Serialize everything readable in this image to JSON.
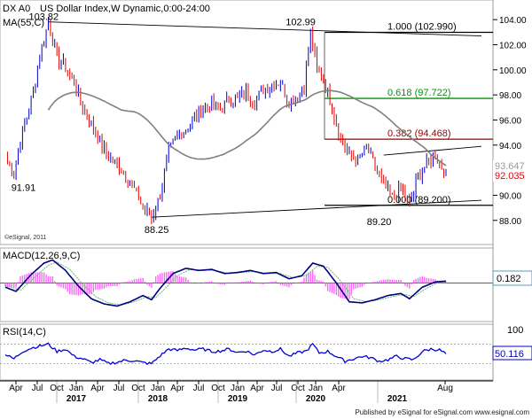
{
  "header": {
    "symbol": "DX A0",
    "title": "US Dollar Index,W",
    "mode": "Dynamic,0:00-24:00",
    "ma_label": "MA(55,C)",
    "watermark": "©eSignal, 2011",
    "footer": "Published by eSignal for eSignal.com  www.esignal.com"
  },
  "colors": {
    "up": "#0000cc",
    "down": "#dd0000",
    "ma": "#808080",
    "fib_100": "#000000",
    "fib_618": "#009900",
    "fib_382": "#990000",
    "fib_0": "#000000",
    "macd_line": "#000080",
    "macd_signal": "#66bb66",
    "macd_hist": "#ff66ff",
    "rsi_line": "#0000dd",
    "price_tag": "#ee0000",
    "macd_tag": "#5599bb",
    "rsi_tag": "#0000bb",
    "axis_bg": "#ffffff",
    "panel_border": "#999999"
  },
  "chart_data": [
    {
      "type": "candlestick",
      "panel": "price",
      "title": "US Dollar Index,W",
      "ylim": [
        86.5,
        105.0
      ],
      "y_ticks": [
        "104.00",
        "102.00",
        "100.00",
        "98.00",
        "96.00",
        "94.00",
        "92.00",
        "90.00",
        "88.00"
      ],
      "x_ticks": [
        "Apr",
        "Jul",
        "Oct",
        "Jan",
        "Apr",
        "Jul",
        "Oct",
        "Jan",
        "Apr",
        "Jul",
        "Oct",
        "Jan",
        "Apr",
        "Jul",
        "Oct",
        "Jan",
        "Apr",
        "Aug"
      ],
      "x_years": [
        "2017",
        "2018",
        "2019",
        "2020",
        "2021"
      ],
      "anchor_points": [
        {
          "i": 0,
          "v": 93.0
        },
        {
          "i": 4,
          "v": 91.91
        },
        {
          "i": 8,
          "v": 95.0
        },
        {
          "i": 12,
          "v": 97.5
        },
        {
          "i": 16,
          "v": 101.0
        },
        {
          "i": 20,
          "v": 103.82
        },
        {
          "i": 24,
          "v": 101.0
        },
        {
          "i": 27,
          "v": 100.5
        },
        {
          "i": 32,
          "v": 99.0
        },
        {
          "i": 36,
          "v": 97.0
        },
        {
          "i": 42,
          "v": 95.0
        },
        {
          "i": 48,
          "v": 93.0
        },
        {
          "i": 52,
          "v": 92.5
        },
        {
          "i": 56,
          "v": 91.5
        },
        {
          "i": 60,
          "v": 90.5
        },
        {
          "i": 64,
          "v": 89.0
        },
        {
          "i": 68,
          "v": 88.25
        },
        {
          "i": 72,
          "v": 90.0
        },
        {
          "i": 76,
          "v": 93.5
        },
        {
          "i": 80,
          "v": 94.8
        },
        {
          "i": 84,
          "v": 95.3
        },
        {
          "i": 88,
          "v": 96.2
        },
        {
          "i": 92,
          "v": 96.9
        },
        {
          "i": 96,
          "v": 97.3
        },
        {
          "i": 100,
          "v": 96.8
        },
        {
          "i": 104,
          "v": 97.8
        },
        {
          "i": 108,
          "v": 97.6
        },
        {
          "i": 112,
          "v": 98.2
        },
        {
          "i": 116,
          "v": 97.5
        },
        {
          "i": 120,
          "v": 98.5
        },
        {
          "i": 124,
          "v": 98.8
        },
        {
          "i": 128,
          "v": 99.0
        },
        {
          "i": 132,
          "v": 97.4
        },
        {
          "i": 136,
          "v": 98.0
        },
        {
          "i": 139,
          "v": 98.6
        },
        {
          "i": 142,
          "v": 102.99
        },
        {
          "i": 145,
          "v": 100.0
        },
        {
          "i": 148,
          "v": 99.2
        },
        {
          "i": 152,
          "v": 97.0
        },
        {
          "i": 156,
          "v": 94.5
        },
        {
          "i": 160,
          "v": 93.2
        },
        {
          "i": 164,
          "v": 92.7
        },
        {
          "i": 168,
          "v": 93.8
        },
        {
          "i": 172,
          "v": 92.3
        },
        {
          "i": 176,
          "v": 90.8
        },
        {
          "i": 180,
          "v": 89.8
        },
        {
          "i": 184,
          "v": 90.6
        },
        {
          "i": 188,
          "v": 89.2
        },
        {
          "i": 192,
          "v": 91.5
        },
        {
          "i": 196,
          "v": 92.5
        },
        {
          "i": 200,
          "v": 93.2
        },
        {
          "i": 203,
          "v": 92.2
        },
        {
          "i": 205,
          "v": 92.035
        }
      ],
      "moving_average": {
        "name": "MA(55,C)",
        "value": "93.647"
      },
      "last_price": "92.035",
      "annotations": [
        {
          "text": "103.82",
          "kind": "high"
        },
        {
          "text": "91.91",
          "kind": "low"
        },
        {
          "text": "88.25",
          "kind": "low"
        },
        {
          "text": "102.99",
          "kind": "high"
        },
        {
          "text": "89.20",
          "kind": "low"
        }
      ],
      "fibonacci": [
        {
          "label": "1.000 (102.990)",
          "value": 102.99
        },
        {
          "label": "0.618 (97.722)",
          "value": 97.722
        },
        {
          "label": "0.382 (94.468)",
          "value": 94.468
        },
        {
          "label": "0.000 (89.200)",
          "value": 89.2
        }
      ],
      "trendlines": [
        {
          "from": {
            "i": 20,
            "v": 103.82
          },
          "to": {
            "i": 205,
            "v": 102.7
          }
        },
        {
          "from": {
            "i": 68,
            "v": 88.25
          },
          "to": {
            "i": 205,
            "v": 89.6
          }
        },
        {
          "from": {
            "i": 176,
            "v": 93.2
          },
          "to": {
            "i": 205,
            "v": 93.9
          }
        }
      ]
    },
    {
      "type": "line",
      "panel": "macd",
      "title": "MACD(12,26,9,C)",
      "ylim": [
        -3.6,
        3.0
      ],
      "last_value": "0.182",
      "series": [
        {
          "name": "MACD",
          "anchors": [
            {
              "i": 0,
              "v": -0.4
            },
            {
              "i": 5,
              "v": -0.8
            },
            {
              "i": 12,
              "v": 0.8
            },
            {
              "i": 18,
              "v": 1.9
            },
            {
              "i": 22,
              "v": 2.2
            },
            {
              "i": 28,
              "v": 1.2
            },
            {
              "i": 34,
              "v": -0.3
            },
            {
              "i": 40,
              "v": -1.5
            },
            {
              "i": 46,
              "v": -2.0
            },
            {
              "i": 52,
              "v": -2.2
            },
            {
              "i": 58,
              "v": -1.8
            },
            {
              "i": 64,
              "v": -1.2
            },
            {
              "i": 68,
              "v": -1.6
            },
            {
              "i": 72,
              "v": -0.5
            },
            {
              "i": 78,
              "v": 0.9
            },
            {
              "i": 84,
              "v": 1.4
            },
            {
              "i": 90,
              "v": 1.2
            },
            {
              "i": 96,
              "v": 1.3
            },
            {
              "i": 102,
              "v": 0.9
            },
            {
              "i": 108,
              "v": 1.0
            },
            {
              "i": 114,
              "v": 1.2
            },
            {
              "i": 120,
              "v": 0.9
            },
            {
              "i": 126,
              "v": 1.0
            },
            {
              "i": 132,
              "v": 0.4
            },
            {
              "i": 138,
              "v": 0.7
            },
            {
              "i": 143,
              "v": 1.9
            },
            {
              "i": 148,
              "v": 1.6
            },
            {
              "i": 154,
              "v": 0.0
            },
            {
              "i": 160,
              "v": -1.8
            },
            {
              "i": 166,
              "v": -1.9
            },
            {
              "i": 172,
              "v": -1.6
            },
            {
              "i": 178,
              "v": -1.2
            },
            {
              "i": 184,
              "v": -1.0
            },
            {
              "i": 188,
              "v": -1.5
            },
            {
              "i": 194,
              "v": -0.4
            },
            {
              "i": 200,
              "v": 0.1
            },
            {
              "i": 205,
              "v": 0.182
            }
          ]
        },
        {
          "name": "Signal",
          "anchors": [
            {
              "i": 0,
              "v": -0.2
            },
            {
              "i": 7,
              "v": -0.7
            },
            {
              "i": 14,
              "v": 0.6
            },
            {
              "i": 20,
              "v": 1.7
            },
            {
              "i": 24,
              "v": 2.0
            },
            {
              "i": 30,
              "v": 1.3
            },
            {
              "i": 36,
              "v": -0.1
            },
            {
              "i": 42,
              "v": -1.3
            },
            {
              "i": 48,
              "v": -1.9
            },
            {
              "i": 54,
              "v": -2.1
            },
            {
              "i": 60,
              "v": -1.8
            },
            {
              "i": 66,
              "v": -1.3
            },
            {
              "i": 70,
              "v": -1.4
            },
            {
              "i": 74,
              "v": -0.6
            },
            {
              "i": 80,
              "v": 0.7
            },
            {
              "i": 86,
              "v": 1.3
            },
            {
              "i": 92,
              "v": 1.2
            },
            {
              "i": 98,
              "v": 1.2
            },
            {
              "i": 104,
              "v": 0.9
            },
            {
              "i": 110,
              "v": 1.0
            },
            {
              "i": 116,
              "v": 1.1
            },
            {
              "i": 122,
              "v": 0.9
            },
            {
              "i": 128,
              "v": 0.9
            },
            {
              "i": 134,
              "v": 0.5
            },
            {
              "i": 140,
              "v": 0.7
            },
            {
              "i": 145,
              "v": 1.6
            },
            {
              "i": 150,
              "v": 1.5
            },
            {
              "i": 156,
              "v": 0.2
            },
            {
              "i": 162,
              "v": -1.5
            },
            {
              "i": 168,
              "v": -1.8
            },
            {
              "i": 174,
              "v": -1.6
            },
            {
              "i": 180,
              "v": -1.3
            },
            {
              "i": 186,
              "v": -1.1
            },
            {
              "i": 190,
              "v": -1.3
            },
            {
              "i": 196,
              "v": -0.5
            },
            {
              "i": 201,
              "v": 0.0
            },
            {
              "i": 205,
              "v": 0.1
            }
          ]
        }
      ]
    },
    {
      "type": "line",
      "panel": "rsi",
      "title": "RSI(14,C)",
      "ylim": [
        0,
        100
      ],
      "y_ticks": [
        "100"
      ],
      "last_value": "50.116",
      "series": [
        {
          "name": "RSI",
          "anchors": [
            {
              "i": 0,
              "v": 48
            },
            {
              "i": 4,
              "v": 40
            },
            {
              "i": 8,
              "v": 55
            },
            {
              "i": 12,
              "v": 62
            },
            {
              "i": 16,
              "v": 66
            },
            {
              "i": 20,
              "v": 70
            },
            {
              "i": 24,
              "v": 55
            },
            {
              "i": 28,
              "v": 60
            },
            {
              "i": 32,
              "v": 45
            },
            {
              "i": 36,
              "v": 40
            },
            {
              "i": 40,
              "v": 32
            },
            {
              "i": 44,
              "v": 38
            },
            {
              "i": 48,
              "v": 30
            },
            {
              "i": 52,
              "v": 33
            },
            {
              "i": 56,
              "v": 37
            },
            {
              "i": 60,
              "v": 36
            },
            {
              "i": 64,
              "v": 32
            },
            {
              "i": 68,
              "v": 30
            },
            {
              "i": 72,
              "v": 46
            },
            {
              "i": 76,
              "v": 60
            },
            {
              "i": 80,
              "v": 57
            },
            {
              "i": 84,
              "v": 62
            },
            {
              "i": 88,
              "v": 58
            },
            {
              "i": 92,
              "v": 60
            },
            {
              "i": 96,
              "v": 55
            },
            {
              "i": 100,
              "v": 56
            },
            {
              "i": 104,
              "v": 60
            },
            {
              "i": 108,
              "v": 53
            },
            {
              "i": 112,
              "v": 56
            },
            {
              "i": 116,
              "v": 48
            },
            {
              "i": 120,
              "v": 58
            },
            {
              "i": 124,
              "v": 55
            },
            {
              "i": 128,
              "v": 60
            },
            {
              "i": 132,
              "v": 45
            },
            {
              "i": 136,
              "v": 52
            },
            {
              "i": 140,
              "v": 56
            },
            {
              "i": 143,
              "v": 70
            },
            {
              "i": 146,
              "v": 52
            },
            {
              "i": 150,
              "v": 55
            },
            {
              "i": 154,
              "v": 45
            },
            {
              "i": 158,
              "v": 35
            },
            {
              "i": 162,
              "v": 40
            },
            {
              "i": 166,
              "v": 45
            },
            {
              "i": 170,
              "v": 42
            },
            {
              "i": 174,
              "v": 35
            },
            {
              "i": 178,
              "v": 38
            },
            {
              "i": 182,
              "v": 45
            },
            {
              "i": 186,
              "v": 40
            },
            {
              "i": 190,
              "v": 38
            },
            {
              "i": 194,
              "v": 55
            },
            {
              "i": 198,
              "v": 60
            },
            {
              "i": 202,
              "v": 58
            },
            {
              "i": 205,
              "v": 50.116
            }
          ]
        }
      ]
    }
  ]
}
